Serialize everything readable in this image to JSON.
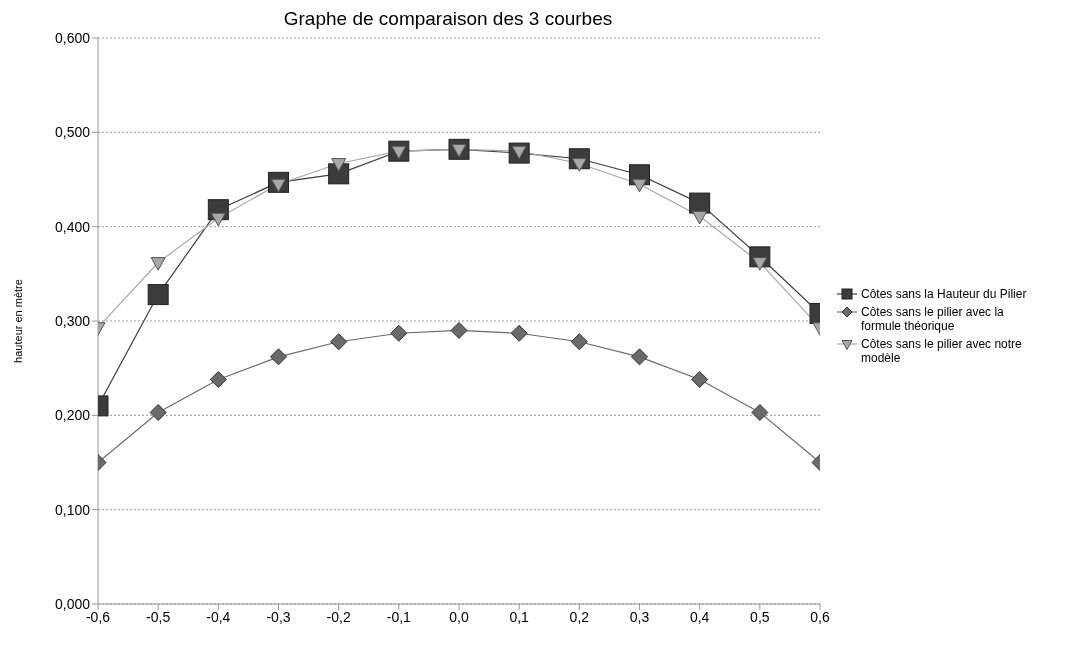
{
  "chart_data": {
    "type": "line",
    "title": "Graphe de comparaison des 3 courbes",
    "ylabel": "hauteur en mètre",
    "categories": [
      "-0,6",
      "-0,5",
      "-0,4",
      "-0,3",
      "-0,2",
      "-0,1",
      "0,0",
      "0,1",
      "0,2",
      "0,3",
      "0,4",
      "0,5",
      "0,6"
    ],
    "series": [
      {
        "name": "Côtes sans la Hauteur du Pilier",
        "color": "#3c3c3c",
        "marker": "square",
        "values": [
          0.21,
          0.328,
          0.418,
          0.447,
          0.456,
          0.48,
          0.482,
          0.478,
          0.472,
          0.455,
          0.425,
          0.368,
          0.308
        ]
      },
      {
        "name": "Côtes sans le pilier avec la formule théorique",
        "color": "#6a6a6a",
        "marker": "diamond",
        "values": [
          0.15,
          0.203,
          0.238,
          0.262,
          0.278,
          0.287,
          0.29,
          0.287,
          0.278,
          0.262,
          0.238,
          0.203,
          0.15
        ]
      },
      {
        "name": "Côtes sans le pilier avec notre modèle",
        "color": "#a8a8a8",
        "marker": "triangle",
        "values": [
          0.293,
          0.362,
          0.409,
          0.445,
          0.467,
          0.48,
          0.482,
          0.48,
          0.467,
          0.445,
          0.411,
          0.362,
          0.293
        ]
      }
    ],
    "ylim": [
      0,
      0.6
    ],
    "yticks": [
      {
        "value": 0,
        "label": "0,000"
      },
      {
        "value": 0.1,
        "label": "0,100"
      },
      {
        "value": 0.2,
        "label": "0,200"
      },
      {
        "value": 0.3,
        "label": "0,300"
      },
      {
        "value": 0.4,
        "label": "0,400"
      },
      {
        "value": 0.5,
        "label": "0,500"
      },
      {
        "value": 0.6,
        "label": "0,600"
      }
    ],
    "grid": "y",
    "legend": "right",
    "line_style": "solid"
  }
}
